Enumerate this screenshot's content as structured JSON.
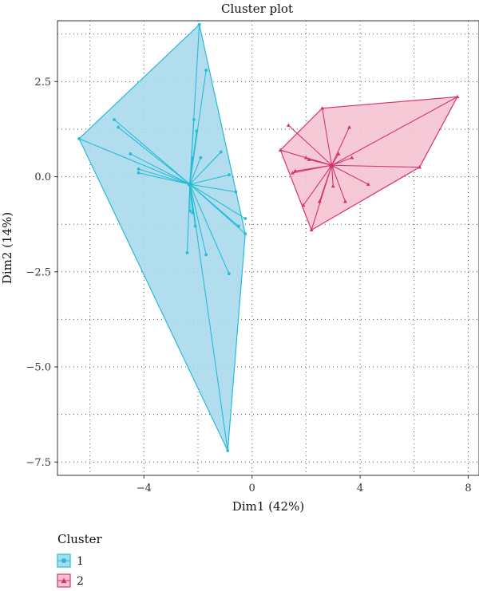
{
  "chart_data": {
    "type": "scatter",
    "title": "Cluster plot",
    "xlabel": "Dim1 (42%)",
    "ylabel": "Dim2 (14%)",
    "xlim": [
      -7.2,
      8.4
    ],
    "ylim": [
      -7.85,
      4.1
    ],
    "x_ticks": [
      -4,
      0,
      4,
      8
    ],
    "y_ticks": [
      -7.5,
      -5.0,
      -2.5,
      0.0,
      2.5
    ],
    "x_tick_labels": [
      "−4",
      "0",
      "4",
      "8"
    ],
    "y_tick_labels": [
      "−7.5",
      "−5.0",
      "−2.5",
      "0.0",
      "2.5"
    ],
    "grid": true,
    "legend": {
      "title": "Cluster",
      "position": "bottom-left",
      "entries": [
        {
          "label": "1",
          "marker": "circle",
          "color": "#26bcd6"
        },
        {
          "label": "2",
          "marker": "triangle",
          "color": "#d6336c"
        }
      ]
    },
    "series": [
      {
        "label": "1",
        "color": "#26bcd6",
        "fill": "#a8d9ec",
        "marker": "circle",
        "center": [
          -2.3,
          -0.2
        ],
        "hull": [
          [
            -6.4,
            1.0
          ],
          [
            -1.95,
            4.0
          ],
          [
            -0.25,
            -1.5
          ],
          [
            -0.9,
            -7.2
          ]
        ],
        "points": [
          [
            -1.95,
            4.0
          ],
          [
            -1.7,
            2.8
          ],
          [
            -5.1,
            1.5
          ],
          [
            -4.95,
            1.3
          ],
          [
            -6.4,
            1.0
          ],
          [
            -4.5,
            0.6
          ],
          [
            -4.2,
            0.2
          ],
          [
            -4.2,
            0.1
          ],
          [
            -2.15,
            1.5
          ],
          [
            -2.05,
            1.2
          ],
          [
            -2.2,
            0.5
          ],
          [
            -1.9,
            0.5
          ],
          [
            -1.15,
            0.65
          ],
          [
            -0.85,
            0.05
          ],
          [
            -0.6,
            -0.4
          ],
          [
            -0.25,
            -1.1
          ],
          [
            -0.5,
            -1.3
          ],
          [
            -0.25,
            -1.5
          ],
          [
            -2.3,
            -0.9
          ],
          [
            -2.2,
            -0.95
          ],
          [
            -2.1,
            -1.3
          ],
          [
            -1.7,
            -2.05
          ],
          [
            -2.4,
            -2.0
          ],
          [
            -0.85,
            -2.55
          ],
          [
            -0.9,
            -7.2
          ]
        ]
      },
      {
        "label": "2",
        "color": "#d6336c",
        "fill": "#f4c4d2",
        "marker": "triangle",
        "center": [
          2.95,
          0.3
        ],
        "hull": [
          [
            1.05,
            0.7
          ],
          [
            2.6,
            1.8
          ],
          [
            7.6,
            2.1
          ],
          [
            6.2,
            0.25
          ],
          [
            2.2,
            -1.4
          ]
        ],
        "points": [
          [
            1.05,
            0.7
          ],
          [
            1.35,
            1.35
          ],
          [
            2.6,
            1.8
          ],
          [
            3.6,
            1.3
          ],
          [
            7.6,
            2.1
          ],
          [
            2.0,
            0.5
          ],
          [
            2.1,
            0.45
          ],
          [
            1.6,
            0.15
          ],
          [
            1.5,
            0.1
          ],
          [
            4.3,
            -0.2
          ],
          [
            6.2,
            0.25
          ],
          [
            3.0,
            -0.25
          ],
          [
            2.5,
            -0.65
          ],
          [
            1.9,
            -0.75
          ],
          [
            3.45,
            -0.65
          ],
          [
            2.2,
            -1.4
          ],
          [
            3.2,
            0.6
          ],
          [
            3.7,
            0.5
          ]
        ]
      }
    ]
  }
}
